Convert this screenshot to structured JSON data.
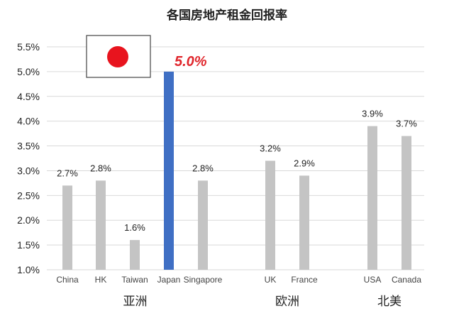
{
  "chart_data": {
    "type": "bar",
    "title": "各国房地产租金回报率",
    "categories": [
      "China",
      "HK",
      "Taiwan",
      "Japan",
      "Singapore",
      "UK",
      "France",
      "USA",
      "Canada"
    ],
    "values": [
      2.7,
      2.8,
      1.6,
      5.0,
      2.8,
      3.2,
      2.9,
      3.9,
      3.7
    ],
    "value_labels": [
      "2.7%",
      "2.8%",
      "1.6%",
      "5.0%",
      "2.8%",
      "3.2%",
      "2.9%",
      "3.9%",
      "3.7%"
    ],
    "groups": [
      {
        "label": "亚洲",
        "members": [
          "China",
          "HK",
          "Taiwan",
          "Japan",
          "Singapore"
        ]
      },
      {
        "label": "欧洲",
        "members": [
          "UK",
          "France"
        ]
      },
      {
        "label": "北美",
        "members": [
          "USA",
          "Canada"
        ]
      }
    ],
    "ylim": [
      1.0,
      5.5
    ],
    "yticks": [
      "1.0%",
      "1.5%",
      "2.0%",
      "2.5%",
      "3.0%",
      "3.5%",
      "4.0%",
      "4.5%",
      "5.0%",
      "5.5%"
    ],
    "grid": true,
    "highlight": "Japan",
    "annotation": "Japanese flag",
    "colors": {
      "bar": "#c4c4c4",
      "highlight_bar": "#3f6fc4",
      "highlight_label": "#e0262c",
      "flag_sun": "#e8141e",
      "grid": "#d9d9d9",
      "text": "#222222"
    }
  }
}
